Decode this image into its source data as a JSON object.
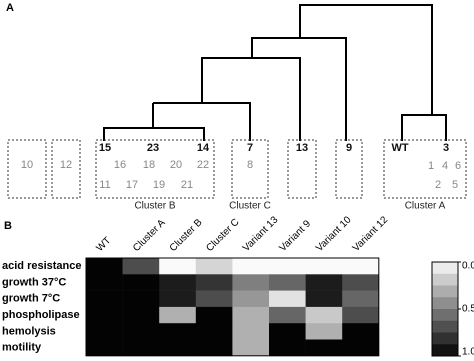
{
  "panels": {
    "a": "A",
    "b": "B"
  },
  "dendrogram": {
    "groups": [
      {
        "members": [
          "10"
        ]
      },
      {
        "members": [
          "12"
        ]
      },
      {
        "leaders": [
          "15",
          "23",
          "14"
        ],
        "members": [
          "16",
          "18",
          "20",
          "22",
          "11",
          "17",
          "19",
          "21"
        ],
        "cluster": "Cluster B"
      },
      {
        "leaders": [
          "7"
        ],
        "members": [
          "8"
        ],
        "cluster": "Cluster C"
      },
      {
        "leaders": [
          "13"
        ]
      },
      {
        "leaders": [
          "9"
        ]
      },
      {
        "leaders": [
          "WT",
          "3"
        ],
        "members": [
          "1",
          "4",
          "6",
          "2",
          "5"
        ],
        "cluster": "Cluster A"
      }
    ]
  },
  "chart_data": {
    "type": "heatmap",
    "columns": [
      "WT",
      "Cluster A",
      "Cluster B",
      "Cluster C",
      "Variant 13",
      "Variant 9",
      "Variant 10",
      "Variant 12"
    ],
    "rows": [
      "acid resistance",
      "growth 37°C",
      "growth 7°C",
      "phospholipase",
      "hemolysis",
      "motility"
    ],
    "values": [
      [
        1,
        0.7,
        0,
        0.15,
        0,
        0,
        0,
        0
      ],
      [
        1,
        1,
        0.9,
        0.8,
        0.5,
        0.6,
        0.9,
        0.7
      ],
      [
        1,
        1,
        0.9,
        0.7,
        0.4,
        0.1,
        0.9,
        0.6
      ],
      [
        1,
        1,
        0.3,
        1,
        0.3,
        0.6,
        0.2,
        0.7
      ],
      [
        1,
        1,
        1,
        1,
        0.3,
        1,
        0.3,
        1
      ],
      [
        1,
        1,
        1,
        1,
        0.3,
        1,
        1,
        1
      ]
    ],
    "zlim": [
      0,
      1
    ],
    "zticks": [
      {
        "value": 0,
        "label": "0.0"
      },
      {
        "value": 0.5,
        "label": "0.5"
      },
      {
        "value": 1,
        "label": "1.0"
      }
    ]
  }
}
